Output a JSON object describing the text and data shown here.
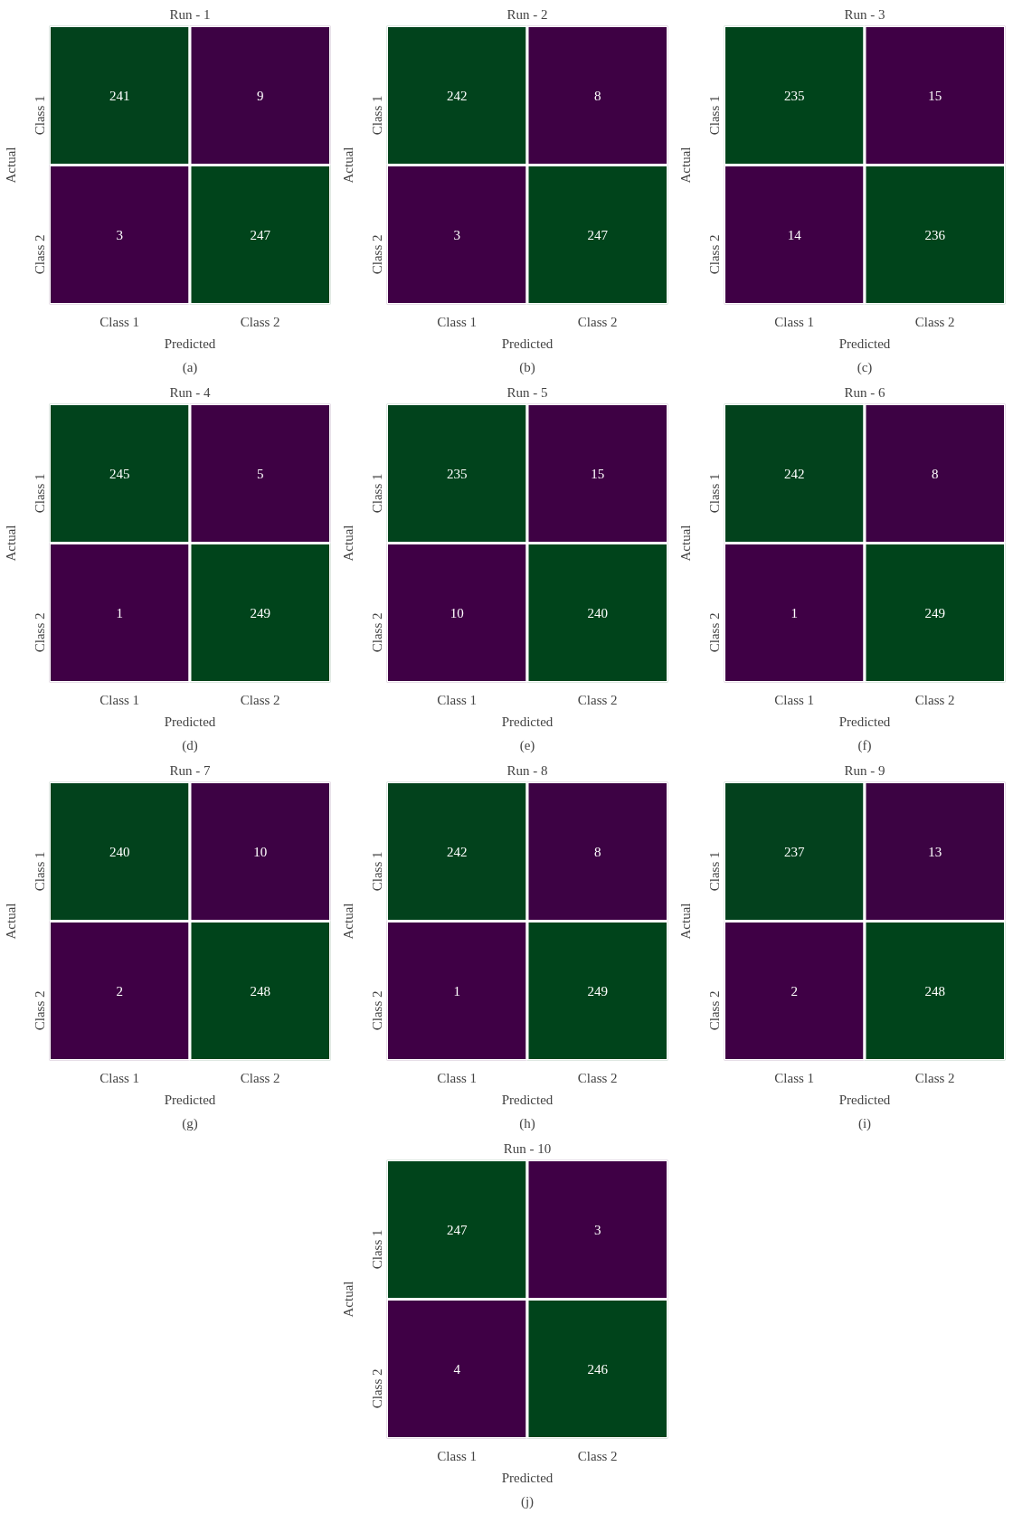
{
  "chart_data": [
    {
      "type": "heatmap",
      "title": "Run - 1",
      "xlabel": "Predicted",
      "ylabel": "Actual",
      "categories": [
        "Class 1",
        "Class 2"
      ],
      "y_categories": [
        "Class 1",
        "Class 2"
      ],
      "cells": [
        [
          241,
          9
        ],
        [
          3,
          247
        ]
      ],
      "colors": [
        "#3f0045",
        "#00441b"
      ],
      "data_labels": true,
      "annotations": [
        "(a)"
      ]
    },
    {
      "type": "heatmap",
      "title": "Run - 2",
      "xlabel": "Predicted",
      "ylabel": "Actual",
      "categories": [
        "Class 1",
        "Class 2"
      ],
      "y_categories": [
        "Class 1",
        "Class 2"
      ],
      "cells": [
        [
          242,
          8
        ],
        [
          3,
          247
        ]
      ],
      "colors": [
        "#3f0045",
        "#00441b"
      ],
      "data_labels": true,
      "annotations": [
        "(b)"
      ]
    },
    {
      "type": "heatmap",
      "title": "Run - 3",
      "xlabel": "Predicted",
      "ylabel": "Actual",
      "categories": [
        "Class 1",
        "Class 2"
      ],
      "y_categories": [
        "Class 1",
        "Class 2"
      ],
      "cells": [
        [
          235,
          15
        ],
        [
          14,
          236
        ]
      ],
      "colors": [
        "#3f0045",
        "#00441b"
      ],
      "data_labels": true,
      "annotations": [
        "(c)"
      ]
    },
    {
      "type": "heatmap",
      "title": "Run - 4",
      "xlabel": "Predicted",
      "ylabel": "Actual",
      "categories": [
        "Class 1",
        "Class 2"
      ],
      "y_categories": [
        "Class 1",
        "Class 2"
      ],
      "cells": [
        [
          245,
          5
        ],
        [
          1,
          249
        ]
      ],
      "colors": [
        "#3f0045",
        "#00441b"
      ],
      "data_labels": true,
      "annotations": [
        "(d)"
      ]
    },
    {
      "type": "heatmap",
      "title": "Run - 5",
      "xlabel": "Predicted",
      "ylabel": "Actual",
      "categories": [
        "Class 1",
        "Class 2"
      ],
      "y_categories": [
        "Class 1",
        "Class 2"
      ],
      "cells": [
        [
          235,
          15
        ],
        [
          10,
          240
        ]
      ],
      "colors": [
        "#3f0045",
        "#00441b"
      ],
      "data_labels": true,
      "annotations": [
        "(e)"
      ]
    },
    {
      "type": "heatmap",
      "title": "Run - 6",
      "xlabel": "Predicted",
      "ylabel": "Actual",
      "categories": [
        "Class 1",
        "Class 2"
      ],
      "y_categories": [
        "Class 1",
        "Class 2"
      ],
      "cells": [
        [
          242,
          8
        ],
        [
          1,
          249
        ]
      ],
      "colors": [
        "#3f0045",
        "#00441b"
      ],
      "data_labels": true,
      "annotations": [
        "(f)"
      ]
    },
    {
      "type": "heatmap",
      "title": "Run - 7",
      "xlabel": "Predicted",
      "ylabel": "Actual",
      "categories": [
        "Class 1",
        "Class 2"
      ],
      "y_categories": [
        "Class 1",
        "Class 2"
      ],
      "cells": [
        [
          240,
          10
        ],
        [
          2,
          248
        ]
      ],
      "colors": [
        "#3f0045",
        "#00441b"
      ],
      "data_labels": true,
      "annotations": [
        "(g)"
      ]
    },
    {
      "type": "heatmap",
      "title": "Run - 8",
      "xlabel": "Predicted",
      "ylabel": "Actual",
      "categories": [
        "Class 1",
        "Class 2"
      ],
      "y_categories": [
        "Class 1",
        "Class 2"
      ],
      "cells": [
        [
          242,
          8
        ],
        [
          1,
          249
        ]
      ],
      "colors": [
        "#3f0045",
        "#00441b"
      ],
      "data_labels": true,
      "annotations": [
        "(h)"
      ]
    },
    {
      "type": "heatmap",
      "title": "Run - 9",
      "xlabel": "Predicted",
      "ylabel": "Actual",
      "categories": [
        "Class 1",
        "Class 2"
      ],
      "y_categories": [
        "Class 1",
        "Class 2"
      ],
      "cells": [
        [
          237,
          13
        ],
        [
          2,
          248
        ]
      ],
      "colors": [
        "#3f0045",
        "#00441b"
      ],
      "data_labels": true,
      "annotations": [
        "(i)"
      ]
    },
    {
      "type": "heatmap",
      "title": "Run - 10",
      "xlabel": "Predicted",
      "ylabel": "Actual",
      "categories": [
        "Class 1",
        "Class 2"
      ],
      "y_categories": [
        "Class 1",
        "Class 2"
      ],
      "cells": [
        [
          247,
          3
        ],
        [
          4,
          246
        ]
      ],
      "colors": [
        "#3f0045",
        "#00441b"
      ],
      "data_labels": true,
      "annotations": [
        "(j)"
      ]
    }
  ]
}
